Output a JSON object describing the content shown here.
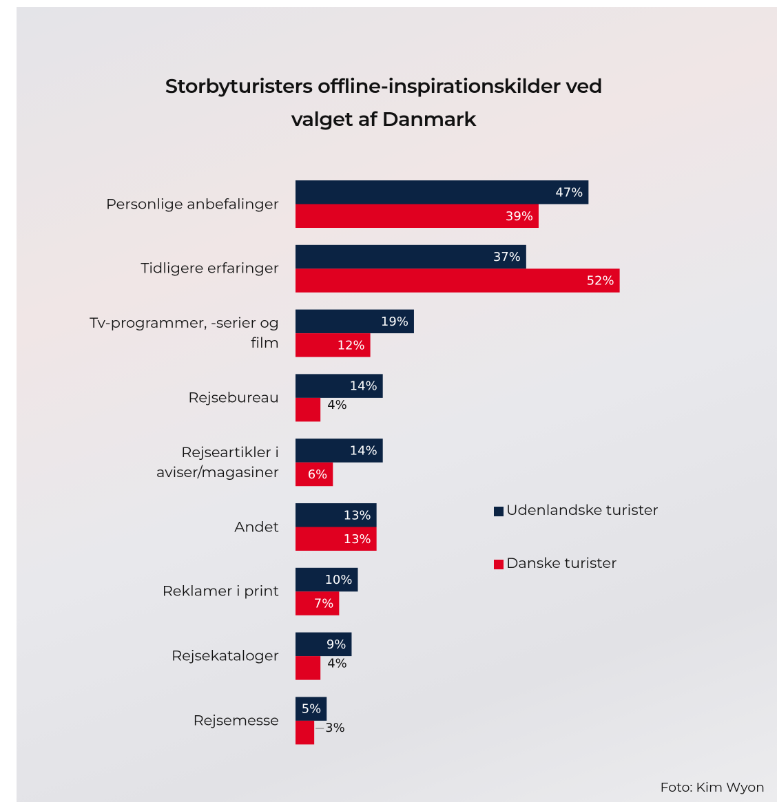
{
  "chart_data": {
    "type": "bar",
    "orientation": "horizontal",
    "title": "Storbyturisters offline-inspirationskilder ved valget af Danmark",
    "categories": [
      "Personlige anbefalinger",
      "Tidligere erfaringer",
      "Tv-programmer, -serier og film",
      "Rejsebureau",
      "Rejseartikler i aviser/magasiner",
      "Andet",
      "Reklamer i print",
      "Rejsekataloger",
      "Rejsemesse"
    ],
    "series": [
      {
        "name": "Udenlandske turister",
        "color": "#0b2343",
        "values": [
          47,
          37,
          19,
          14,
          14,
          13,
          10,
          9,
          5
        ],
        "value_labels": [
          "47%",
          "37%",
          "19%",
          "14%",
          "14%",
          "13%",
          "10%",
          "9%",
          "5%"
        ]
      },
      {
        "name": "Danske turister",
        "color": "#e00020",
        "values": [
          39,
          52,
          12,
          4,
          6,
          13,
          7,
          4,
          3
        ],
        "value_labels": [
          "39%",
          "52%",
          "12%",
          "4%",
          "6%",
          "13%",
          "7%",
          "4%",
          "3%"
        ]
      }
    ],
    "credit": "Foto: Kim Wyon"
  }
}
